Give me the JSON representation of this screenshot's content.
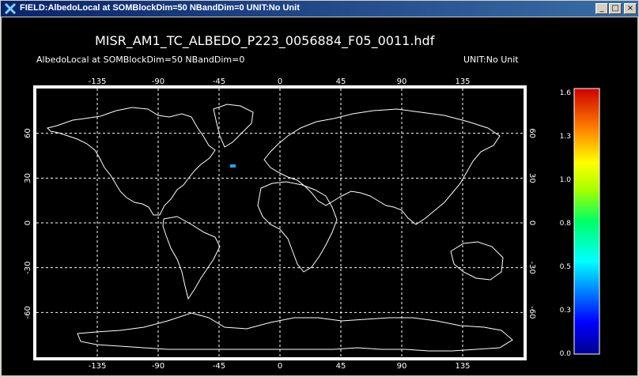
{
  "window": {
    "title": "FIELD:AlbedoLocal  at SOMBlockDim=50 NBandDim=0  UNIT:No Unit",
    "minimize_glyph": "_",
    "maximize_glyph": "□",
    "close_glyph": "×"
  },
  "plot": {
    "file_title": "MISR_AM1_TC_ALBEDO_P223_0056884_F05_0011.hdf",
    "subtitle": "AlbedoLocal at SOMBlockDim=50 NBandDim=0",
    "unit": "UNIT:No Unit",
    "lon_ticks": [
      "-135",
      "-90",
      "-45",
      "0",
      "45",
      "90",
      "135"
    ],
    "lat_ticks": [
      "60",
      "30",
      "0",
      "-30",
      "-60"
    ],
    "lat_ticks_right": [
      "60",
      "30",
      "0",
      "-30",
      "-60"
    ]
  },
  "colorbar": {
    "ticks": [
      "1.6",
      "1.3",
      "1.0",
      "0.8",
      "0.5",
      "0.3",
      "0.0"
    ],
    "min": 0.0,
    "max": 1.6
  },
  "colors": {
    "titlebar": "#0a246a",
    "background": "#000000",
    "foreground": "#ffffff",
    "data_pixel": "#2aa0ff"
  }
}
